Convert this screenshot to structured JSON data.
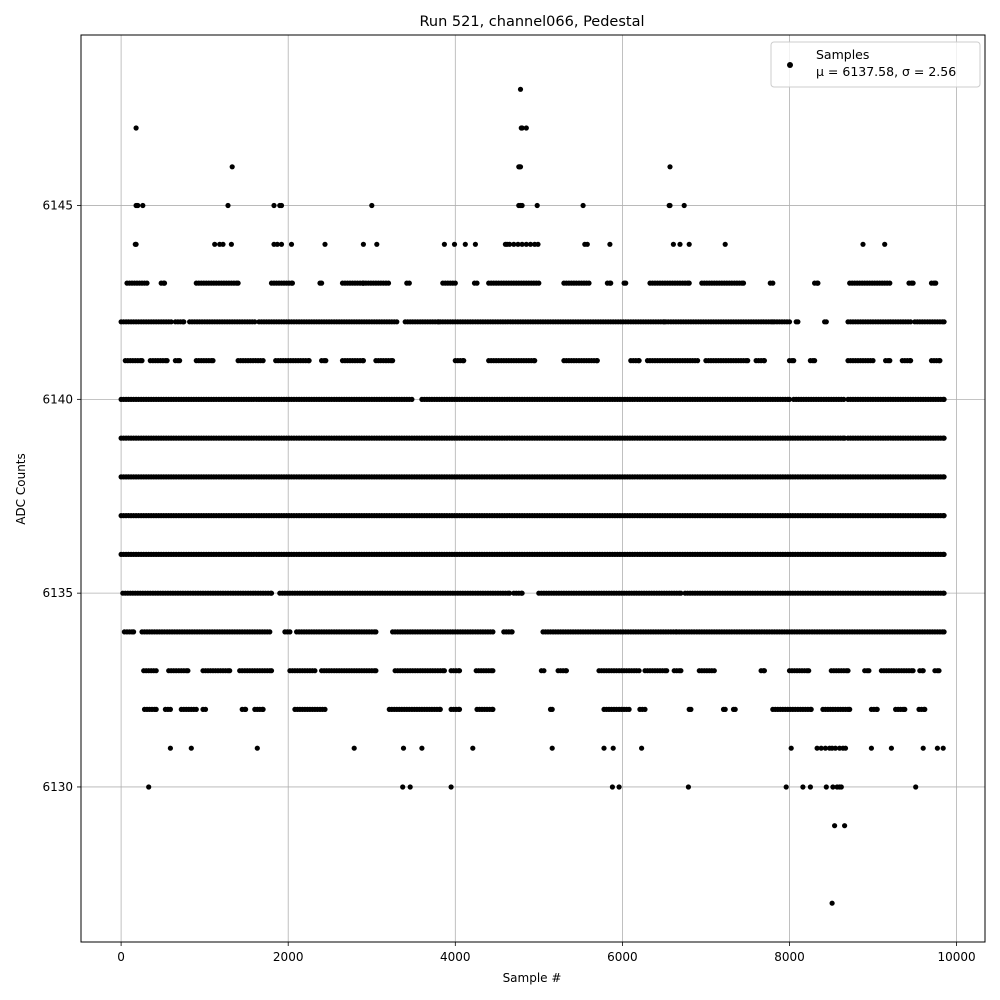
{
  "chart_data": {
    "type": "scatter",
    "title": "Run 521, channel066, Pedestal",
    "xlabel": "Sample #",
    "ylabel": "ADC Counts",
    "xlim": [
      -480,
      10340
    ],
    "ylim": [
      6126.0,
      6149.4
    ],
    "x_ticks": [
      0,
      2000,
      4000,
      6000,
      8000,
      10000
    ],
    "y_ticks": [
      6130,
      6135,
      6140,
      6145
    ],
    "grid": true,
    "legend_position": "top-right",
    "marker_color": "#000000",
    "series": [
      {
        "name": "Samples",
        "stats_label": "μ = 6137.58, σ = 2.56",
        "mean": 6137.58,
        "sigma": 2.56,
        "n_samples": 9850,
        "level_segments": [
          {
            "y": 6148,
            "x": [
              4780
            ]
          },
          {
            "y": 6147,
            "x": [
              180,
              4790,
              4800,
              4850
            ]
          },
          {
            "y": 6146,
            "x": [
              1330,
              4760,
              4770,
              4780,
              6570
            ]
          },
          {
            "y": 6145,
            "x": [
              180,
              200,
              260,
              1280,
              1830,
              1900,
              1920,
              3000,
              4760,
              4780,
              4800,
              4980,
              5530,
              6560,
              6570,
              6740
            ]
          },
          {
            "y": 6144,
            "x": [
              170,
              180,
              1120,
              1180,
              1220,
              1320,
              1830,
              1870,
              1920,
              2040,
              2440,
              2900,
              3060,
              3870,
              3990,
              4120,
              4240,
              4600,
              4620,
              4650,
              4700,
              4750,
              4800,
              4850,
              4900,
              4950,
              4990,
              5550,
              5580,
              5850,
              6610,
              6690,
              6800,
              7230,
              8880,
              9140
            ]
          },
          {
            "y": 6143,
            "ranges": [
              [
                70,
                310
              ],
              [
                480,
                520
              ],
              [
                900,
                1400
              ],
              [
                1800,
                2050
              ],
              [
                2380,
                2400
              ],
              [
                2650,
                2900
              ],
              [
                2900,
                3200
              ],
              [
                3420,
                3450
              ],
              [
                3850,
                4000
              ],
              [
                4230,
                4260
              ],
              [
                4400,
                5000
              ],
              [
                5300,
                5600
              ],
              [
                5820,
                5860
              ],
              [
                6020,
                6040
              ],
              [
                6330,
                6800
              ],
              [
                6950,
                7450
              ],
              [
                7770,
                7800
              ],
              [
                8300,
                8340
              ],
              [
                8720,
                9200
              ],
              [
                9430,
                9480
              ],
              [
                9700,
                9750
              ]
            ]
          },
          {
            "y": 6142,
            "ranges": [
              [
                0,
                600
              ],
              [
                650,
                750
              ],
              [
                820,
                1600
              ],
              [
                1650,
                3300
              ],
              [
                3400,
                3800
              ],
              [
                3820,
                6500
              ],
              [
                6520,
                7800
              ],
              [
                7820,
                8000
              ],
              [
                8080,
                8100
              ],
              [
                8420,
                8440
              ],
              [
                8700,
                9450
              ],
              [
                9500,
                9850
              ]
            ]
          },
          {
            "y": 6141,
            "ranges": [
              [
                50,
                250
              ],
              [
                350,
                550
              ],
              [
                650,
                700
              ],
              [
                900,
                1100
              ],
              [
                1400,
                1700
              ],
              [
                1850,
                2250
              ],
              [
                2400,
                2450
              ],
              [
                2650,
                2900
              ],
              [
                3050,
                3250
              ],
              [
                4000,
                4100
              ],
              [
                4400,
                4950
              ],
              [
                5300,
                5700
              ],
              [
                6100,
                6200
              ],
              [
                6300,
                6900
              ],
              [
                7000,
                7500
              ],
              [
                7600,
                7700
              ],
              [
                8000,
                8050
              ],
              [
                8250,
                8300
              ],
              [
                8700,
                9000
              ],
              [
                9150,
                9200
              ],
              [
                9350,
                9450
              ],
              [
                9700,
                9800
              ]
            ]
          },
          {
            "y": 6140,
            "ranges": [
              [
                0,
                3480
              ],
              [
                3600,
                8000
              ],
              [
                8050,
                8650
              ],
              [
                8700,
                9850
              ]
            ]
          },
          {
            "y": 6139,
            "ranges": [
              [
                0,
                8660
              ],
              [
                8700,
                9850
              ]
            ]
          },
          {
            "y": 6138,
            "ranges": [
              [
                0,
                9850
              ]
            ]
          },
          {
            "y": 6137,
            "ranges": [
              [
                0,
                9850
              ]
            ]
          },
          {
            "y": 6136,
            "ranges": [
              [
                0,
                9850
              ]
            ]
          },
          {
            "y": 6135,
            "ranges": [
              [
                20,
                1800
              ],
              [
                1900,
                4650
              ],
              [
                4700,
                4800
              ],
              [
                5000,
                6700
              ],
              [
                6750,
                9850
              ]
            ]
          },
          {
            "y": 6134,
            "ranges": [
              [
                40,
                150
              ],
              [
                250,
                1780
              ],
              [
                1960,
                2020
              ],
              [
                2100,
                3050
              ],
              [
                3250,
                4450
              ],
              [
                4580,
                4680
              ],
              [
                5050,
                6650
              ],
              [
                6680,
                9850
              ]
            ]
          },
          {
            "y": 6133,
            "ranges": [
              [
                270,
                420
              ],
              [
                570,
                800
              ],
              [
                980,
                1300
              ],
              [
                1420,
                1800
              ],
              [
                2020,
                2320
              ],
              [
                2400,
                3050
              ],
              [
                3280,
                3870
              ],
              [
                3950,
                4050
              ],
              [
                4250,
                4450
              ],
              [
                5030,
                5060
              ],
              [
                5230,
                5330
              ],
              [
                5720,
                6200
              ],
              [
                6270,
                6530
              ],
              [
                6620,
                6700
              ],
              [
                6920,
                7100
              ],
              [
                7660,
                7700
              ],
              [
                8000,
                8230
              ],
              [
                8500,
                8700
              ],
              [
                8900,
                8950
              ],
              [
                9100,
                9480
              ],
              [
                9560,
                9600
              ],
              [
                9740,
                9790
              ]
            ]
          },
          {
            "y": 6132,
            "ranges": [
              [
                280,
                420
              ],
              [
                530,
                590
              ],
              [
                720,
                900
              ],
              [
                980,
                1010
              ],
              [
                1450,
                1490
              ],
              [
                1600,
                1700
              ],
              [
                2080,
                2440
              ],
              [
                3210,
                3820
              ],
              [
                3950,
                4050
              ],
              [
                4260,
                4450
              ],
              [
                5140,
                5160
              ],
              [
                5780,
                6080
              ],
              [
                6210,
                6270
              ],
              [
                6800,
                6820
              ],
              [
                7210,
                7230
              ],
              [
                7330,
                7350
              ],
              [
                7800,
                8260
              ],
              [
                8400,
                8720
              ],
              [
                8980,
                9050
              ],
              [
                9270,
                9380
              ],
              [
                9550,
                9620
              ]
            ]
          },
          {
            "y": 6131,
            "x": [
              590,
              840,
              1630,
              2790,
              3380,
              3600,
              4210,
              5160,
              5780,
              5890,
              6230,
              8020,
              8330,
              8380,
              8430,
              8480,
              8510,
              8550,
              8600,
              8640,
              8670,
              8980,
              9220,
              9600,
              9770,
              9840
            ]
          },
          {
            "y": 6130,
            "x": [
              330,
              3370,
              3460,
              3950,
              5880,
              5960,
              6790,
              7960,
              8160,
              8250,
              8440,
              8520,
              8570,
              8600,
              8620,
              9510
            ]
          },
          {
            "y": 6129,
            "x": [
              8540,
              8660
            ]
          },
          {
            "y": 6127,
            "x": [
              8510
            ]
          }
        ]
      }
    ]
  }
}
